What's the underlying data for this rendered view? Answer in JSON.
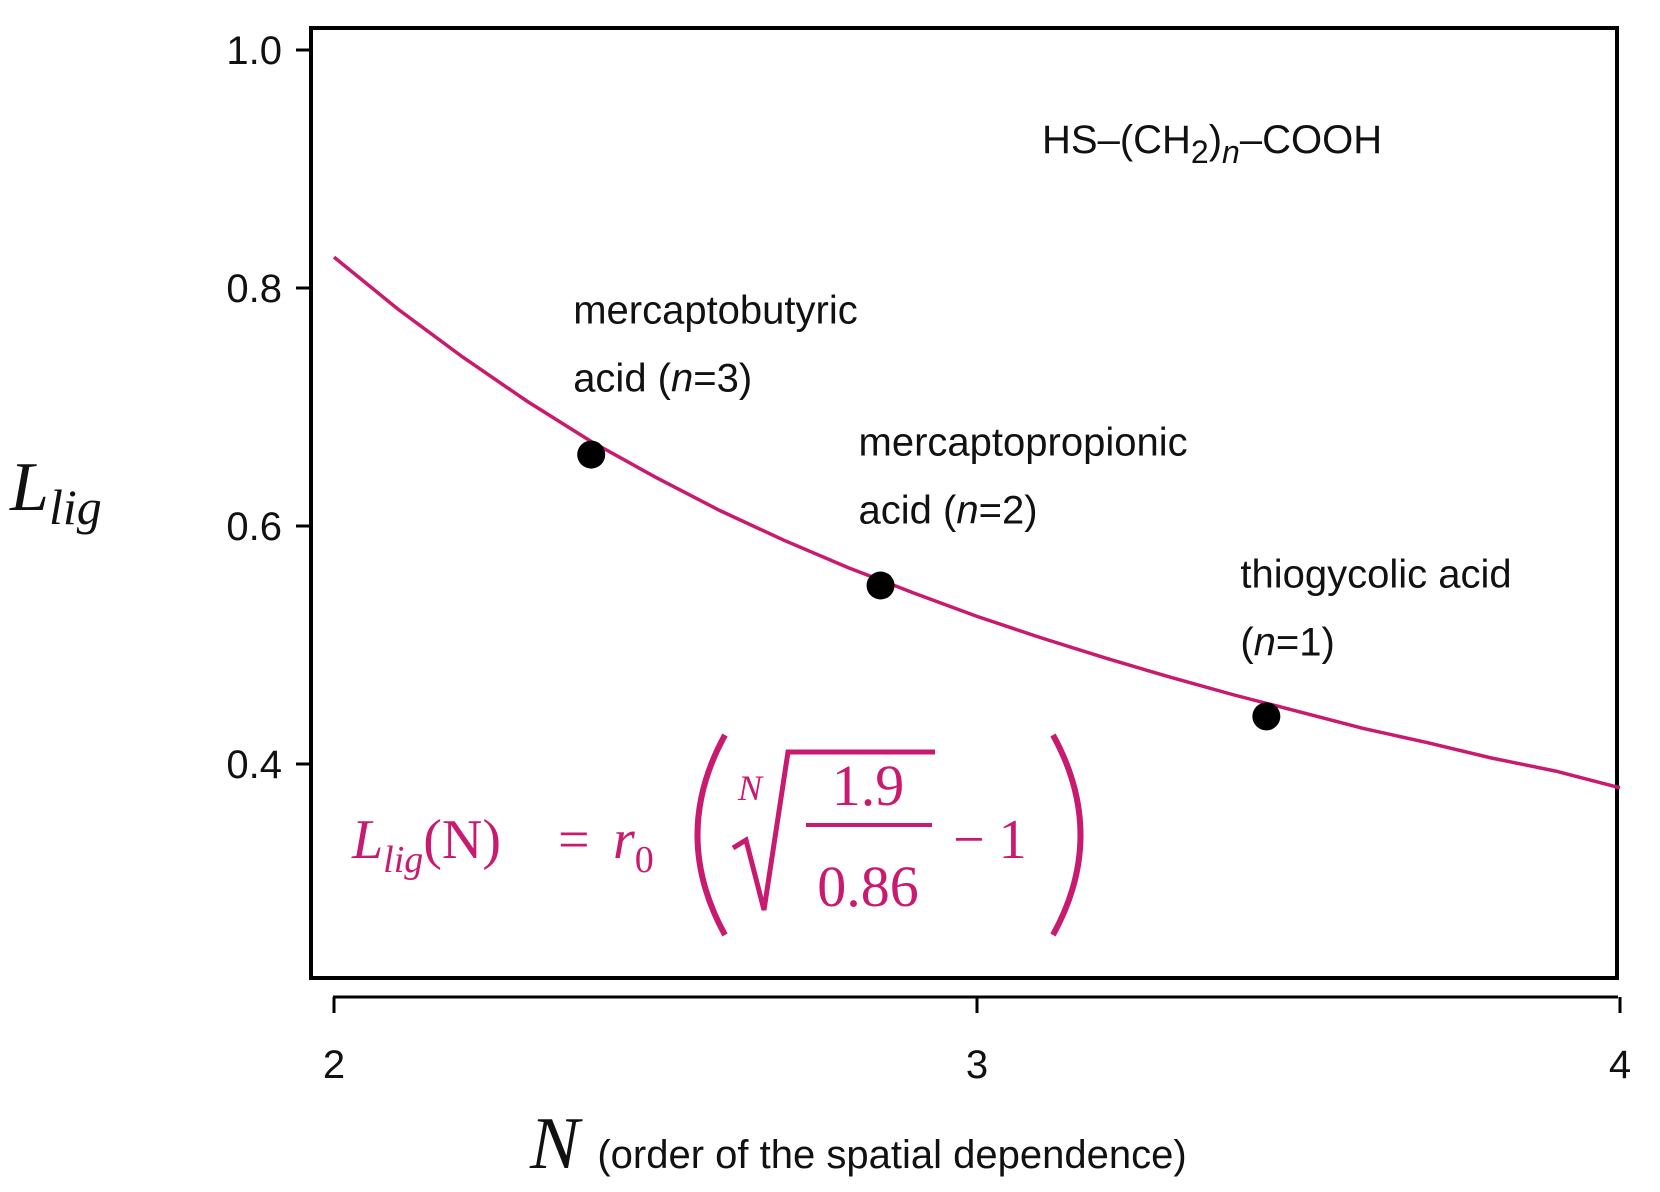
{
  "chart_data": {
    "type": "line",
    "x": {
      "symbol": "N",
      "description": "(order of the spatial dependence)",
      "lim": [
        2,
        4
      ],
      "ticks": [
        2,
        3,
        4
      ],
      "tick_labels": [
        "2",
        "3",
        "4"
      ]
    },
    "y": {
      "symbol": "L",
      "subscript": "lig",
      "ticks": [
        0.4,
        0.6,
        0.8,
        1.0
      ],
      "tick_labels": [
        "0.4",
        "0.6",
        "0.8",
        "1.0"
      ]
    },
    "curve": {
      "color": "#c81a6e",
      "x": [
        2.0,
        2.1,
        2.2,
        2.3,
        2.4,
        2.5,
        2.6,
        2.7,
        2.8,
        2.9,
        3.0,
        3.1,
        3.2,
        3.3,
        3.4,
        3.5,
        3.6,
        3.7,
        3.8,
        3.9,
        4.0
      ],
      "y": [
        0.826,
        0.782,
        0.742,
        0.705,
        0.671,
        0.641,
        0.613,
        0.588,
        0.565,
        0.544,
        0.524,
        0.506,
        0.489,
        0.473,
        0.458,
        0.444,
        0.43,
        0.418,
        0.405,
        0.394,
        0.38
      ]
    },
    "points": [
      {
        "x": 2.4,
        "y": 0.66,
        "label_line1": "mercaptobutyric",
        "label_prefix": "acid (",
        "n_var": "n",
        "label_suffix": "=3)"
      },
      {
        "x": 2.85,
        "y": 0.55,
        "label_line1": "mercaptopropionic",
        "label_prefix": "acid (",
        "n_var": "n",
        "label_suffix": "=2)"
      },
      {
        "x": 3.45,
        "y": 0.44,
        "label_line1": "thiogycolic acid",
        "label_prefix": "(",
        "n_var": "n",
        "label_suffix": "=1)"
      }
    ],
    "point_color": "#000000",
    "annotation": {
      "prefix": "HS–(CH",
      "sub": "2",
      "mid": ")",
      "n_sub": "n",
      "suffix": "–COOH"
    },
    "formula": {
      "lhs_symbol": "L",
      "lhs_sub": "lig",
      "lhs_arg": "(N)",
      "equals": "=",
      "r_symbol": "r",
      "r_sub": "0",
      "root_index": "N",
      "numerator": "1.9",
      "denominator": "0.86",
      "minus_one": "− 1",
      "color": "#c81a6e"
    }
  }
}
